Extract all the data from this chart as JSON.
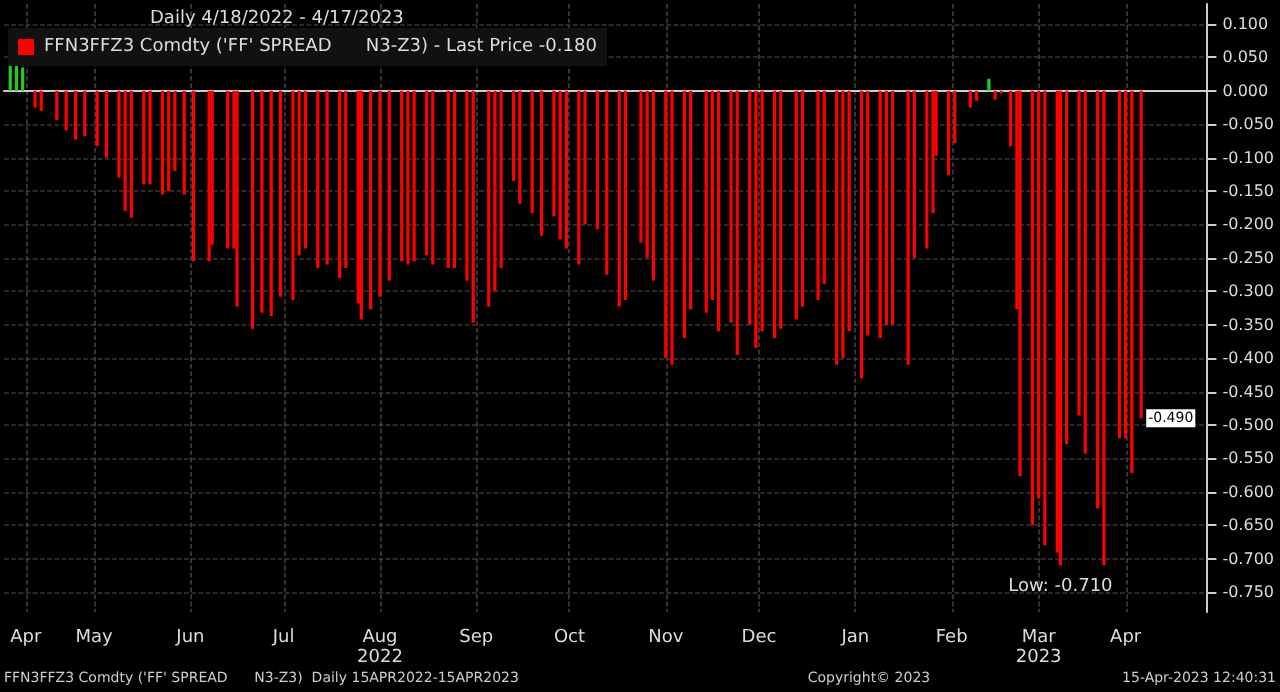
{
  "chart_data": {
    "type": "bar",
    "title": "Daily 4/18/2022 - 4/17/2023",
    "x": [
      "2022-04-26",
      "2022-04-28",
      "2022-05-03",
      "2022-05-06",
      "2022-05-09",
      "2022-05-12",
      "2022-05-16",
      "2022-05-19",
      "2022-05-23",
      "2022-05-25",
      "2022-05-27",
      "2022-05-31",
      "2022-06-02",
      "2022-06-06",
      "2022-06-08",
      "2022-06-10",
      "2022-06-13",
      "2022-06-16",
      "2022-06-21",
      "2022-06-22",
      "2022-06-27",
      "2022-06-29",
      "2022-06-30",
      "2022-07-05",
      "2022-07-08",
      "2022-07-11",
      "2022-07-14",
      "2022-07-18",
      "2022-07-20",
      "2022-07-22",
      "2022-07-26",
      "2022-07-29",
      "2022-08-02",
      "2022-08-04",
      "2022-08-08",
      "2022-08-09",
      "2022-08-12",
      "2022-08-15",
      "2022-08-18",
      "2022-08-22",
      "2022-08-24",
      "2022-08-26",
      "2022-08-30",
      "2022-09-01",
      "2022-09-06",
      "2022-09-08",
      "2022-09-12",
      "2022-09-14",
      "2022-09-19",
      "2022-09-21",
      "2022-09-23",
      "2022-09-27",
      "2022-09-29",
      "2022-10-03",
      "2022-10-06",
      "2022-10-10",
      "2022-10-12",
      "2022-10-14",
      "2022-10-18",
      "2022-10-20",
      "2022-10-24",
      "2022-10-27",
      "2022-10-31",
      "2022-11-02",
      "2022-11-07",
      "2022-11-09",
      "2022-11-11",
      "2022-11-15",
      "2022-11-17",
      "2022-11-21",
      "2022-11-23",
      "2022-11-28",
      "2022-11-30",
      "2022-12-02",
      "2022-12-06",
      "2022-12-08",
      "2022-12-12",
      "2022-12-14",
      "2022-12-16",
      "2022-12-20",
      "2022-12-22",
      "2022-12-27",
      "2022-12-29",
      "2023-01-03",
      "2023-01-05",
      "2023-01-09",
      "2023-01-11",
      "2023-01-13",
      "2023-01-17",
      "2023-01-19",
      "2023-01-23",
      "2023-01-25",
      "2023-01-27",
      "2023-02-01",
      "2023-02-03",
      "2023-02-07",
      "2023-02-09",
      "2023-02-10",
      "2023-02-14",
      "2023-02-16",
      "2023-02-21",
      "2023-02-23",
      "2023-03-01",
      "2023-03-03",
      "2023-03-06",
      "2023-03-08",
      "2023-03-09",
      "2023-03-13",
      "2023-03-15",
      "2023-03-17",
      "2023-03-21",
      "2023-03-22",
      "2023-03-24",
      "2023-03-28",
      "2023-03-30",
      "2023-04-03",
      "2023-04-05",
      "2023-04-10",
      "2023-04-12",
      "2023-04-14",
      "2023-04-17"
    ],
    "series": [
      {
        "name": "FFN3FFZ3 Comdty ('FF' SPREAD      N3-Z3) - Last Price -0.180",
        "color": "#ff0000",
        "values": [
          -0.025,
          -0.03,
          -0.044,
          -0.059,
          -0.073,
          -0.068,
          -0.083,
          -0.1,
          -0.13,
          -0.18,
          -0.19,
          -0.14,
          -0.14,
          -0.155,
          -0.15,
          -0.12,
          -0.155,
          -0.255,
          -0.255,
          -0.23,
          -0.236,
          -0.236,
          -0.323,
          -0.356,
          -0.332,
          -0.337,
          -0.308,
          -0.313,
          -0.246,
          -0.236,
          -0.265,
          -0.26,
          -0.28,
          -0.265,
          -0.318,
          -0.342,
          -0.327,
          -0.308,
          -0.284,
          -0.255,
          -0.26,
          -0.255,
          -0.246,
          -0.26,
          -0.265,
          -0.265,
          -0.284,
          -0.347,
          -0.323,
          -0.3,
          -0.265,
          -0.135,
          -0.169,
          -0.183,
          -0.217,
          -0.188,
          -0.222,
          -0.236,
          -0.26,
          -0.2,
          -0.207,
          -0.275,
          -0.323,
          -0.313,
          -0.227,
          -0.25,
          -0.284,
          -0.4,
          -0.41,
          -0.37,
          -0.327,
          -0.332,
          -0.313,
          -0.36,
          -0.347,
          -0.395,
          -0.35,
          -0.385,
          -0.36,
          -0.37,
          -0.356,
          -0.342,
          -0.323,
          -0.313,
          -0.289,
          -0.41,
          -0.4,
          -0.36,
          -0.43,
          -0.366,
          -0.37,
          -0.35,
          -0.35,
          -0.41,
          -0.25,
          -0.236,
          -0.183,
          -0.097,
          -0.126,
          -0.078,
          -0.025,
          -0.015,
          -0.013,
          -0.004,
          -0.083,
          -0.327,
          -0.577,
          -0.65,
          -0.61,
          -0.68,
          -0.691,
          -0.71,
          -0.529,
          -0.486,
          -0.543,
          -0.625,
          -0.71,
          -0.52,
          -0.52,
          -0.572,
          -0.49
        ]
      },
      {
        "color": "#22cc22",
        "x": [
          "2022-04-18",
          "2022-04-20",
          "2022-04-22",
          "2023-02-27"
        ],
        "values": [
          0.045,
          0.04,
          0.035,
          0.018
        ]
      }
    ],
    "xlim": [
      "2022-04-16",
      "2023-05-08"
    ],
    "xticks": [
      {
        "value": "2022-04-23",
        "label": "Apr"
      },
      {
        "value": "2022-05-15",
        "label": "May"
      },
      {
        "value": "2022-06-15",
        "label": "Jun"
      },
      {
        "value": "2022-07-15",
        "label": "Jul"
      },
      {
        "value": "2022-08-15",
        "label": "Aug\n2022"
      },
      {
        "value": "2022-09-15",
        "label": "Sep"
      },
      {
        "value": "2022-10-15",
        "label": "Oct"
      },
      {
        "value": "2022-11-15",
        "label": "Nov"
      },
      {
        "value": "2022-12-15",
        "label": "Dec"
      },
      {
        "value": "2023-01-15",
        "label": "Jan"
      },
      {
        "value": "2023-02-15",
        "label": "Feb"
      },
      {
        "value": "2023-03-15",
        "label": "Mar\n2023"
      },
      {
        "value": "2023-04-12",
        "label": "Apr"
      }
    ],
    "ylim": [
      -0.78,
      0.13
    ],
    "yticks": [
      {
        "value": 0.1,
        "label": "0.100"
      },
      {
        "value": 0.05,
        "label": "0.050"
      },
      {
        "value": 0,
        "label": "0.000"
      },
      {
        "value": -0.05,
        "label": "-0.050"
      },
      {
        "value": -0.1,
        "label": "-0.100"
      },
      {
        "value": -0.15,
        "label": "-0.150"
      },
      {
        "value": -0.2,
        "label": "-0.200"
      },
      {
        "value": -0.25,
        "label": "-0.250"
      },
      {
        "value": -0.3,
        "label": "-0.300"
      },
      {
        "value": -0.35,
        "label": "-0.350"
      },
      {
        "value": -0.4,
        "label": "-0.400"
      },
      {
        "value": -0.45,
        "label": "-0.450"
      },
      {
        "value": -0.5,
        "label": "-0.500"
      },
      {
        "value": -0.55,
        "label": "-0.550"
      },
      {
        "value": -0.6,
        "label": "-0.600"
      },
      {
        "value": -0.65,
        "label": "-0.650"
      },
      {
        "value": -0.7,
        "label": "-0.700"
      },
      {
        "value": -0.75,
        "label": "-0.750"
      }
    ],
    "grid": true,
    "legend": "top left",
    "annotations": [
      {
        "text": "Low: -0.710",
        "x": "2023-03-22",
        "y": -0.71
      },
      {
        "text": "-0.490",
        "x": "2023-04-17",
        "y": -0.49
      },
      "FFN3FFZ3 Comdty ('FF' SPREAD      N3-Z3)  Daily 15APR2022-15APR2023",
      "Copyright© 2023",
      "15-Apr-2023 12:40:31"
    ]
  }
}
